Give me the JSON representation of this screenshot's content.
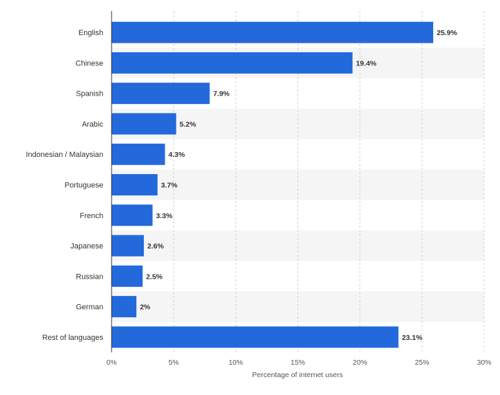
{
  "chart_data": {
    "type": "bar",
    "orientation": "horizontal",
    "categories": [
      "English",
      "Chinese",
      "Spanish",
      "Arabic",
      "Indonesian / Malaysian",
      "Portuguese",
      "French",
      "Japanese",
      "Russian",
      "German",
      "Rest of languages"
    ],
    "values": [
      25.9,
      19.4,
      7.9,
      5.2,
      4.3,
      3.7,
      3.3,
      2.6,
      2.5,
      2,
      23.1
    ],
    "value_labels": [
      "25.9%",
      "19.4%",
      "7.9%",
      "5.2%",
      "4.3%",
      "3.7%",
      "3.3%",
      "2.6%",
      "2.5%",
      "2%",
      "23.1%"
    ],
    "xlabel": "Percentage of internet users",
    "ylabel": "",
    "xlim": [
      0,
      30
    ],
    "xticks": [
      0,
      5,
      10,
      15,
      20,
      25,
      30
    ],
    "xtick_labels": [
      "0%",
      "5%",
      "10%",
      "15%",
      "20%",
      "25%",
      "30%"
    ],
    "bar_color": "#2369db",
    "band_color": "#f5f5f5",
    "grid": true
  }
}
